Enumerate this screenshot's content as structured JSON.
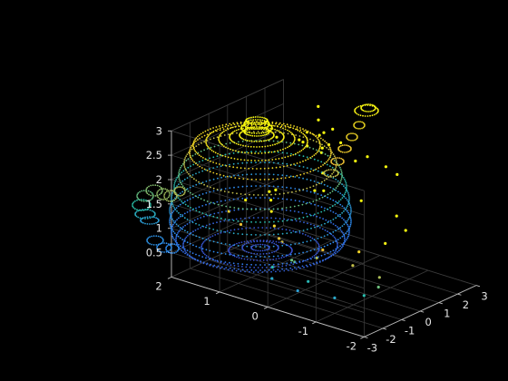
{
  "chart_data": {
    "type": "scatter",
    "title": "",
    "xlabel": "",
    "ylabel": "",
    "zlabel": "",
    "xlim": [
      -3,
      3
    ],
    "ylim": [
      -2,
      2
    ],
    "zlim": [
      0,
      3
    ],
    "x_ticks": [
      "-3",
      "-2",
      "-1",
      "0",
      "1",
      "2",
      "3"
    ],
    "y_ticks": [
      "-2",
      "-1",
      "0",
      "1",
      "2"
    ],
    "z_ticks": [
      "0.5",
      "1",
      "1.5",
      "2",
      "2.5",
      "3"
    ],
    "grid": true,
    "colormap": "parula",
    "colors": [
      "#3e26a8",
      "#2e87f7",
      "#29c3aa",
      "#ecbf33",
      "#f9fb0e"
    ],
    "series": [
      {
        "x": [
          -0.45,
          0.9,
          1.7,
          2.0,
          1.7,
          0.9,
          -0.45,
          -1.6,
          -2.25,
          -2.4,
          -2.25,
          -1.6,
          0.6,
          1.3,
          1.55,
          1.3,
          0.6,
          -0.3,
          -1.1,
          -1.4,
          -1.1,
          -0.3,
          -2.9,
          -2.85,
          -2.75,
          -2.65,
          -2.55,
          -2.45,
          -2.4,
          2.05,
          2.25,
          2.45,
          2.6,
          2.8,
          3.05,
          0.7,
          1.0,
          1.3,
          1.3,
          1.0,
          0.7,
          0.4,
          0.4,
          -0.6,
          0.0,
          0.6,
          0.0,
          -0.6,
          0.0
        ],
        "y": [
          -1.45,
          -1.35,
          -0.85,
          0.0,
          0.85,
          1.35,
          1.45,
          1.35,
          0.85,
          0.0,
          -0.85,
          -1.35,
          -0.9,
          -0.65,
          0.0,
          0.65,
          0.9,
          0.95,
          0.65,
          0.0,
          -0.65,
          -0.95,
          -0.8,
          -0.5,
          -0.2,
          0.0,
          0.1,
          0.15,
          0.2,
          0.8,
          0.9,
          1.0,
          1.1,
          1.2,
          1.3,
          -1.25,
          -0.9,
          -0.4,
          0.4,
          0.9,
          1.25,
          0.5,
          -0.5,
          -0.2,
          -0.35,
          0.05,
          0.35,
          0.2,
          0.0
        ],
        "z": [
          1.3,
          1.3,
          1.3,
          1.3,
          1.3,
          1.3,
          1.3,
          1.3,
          1.3,
          1.3,
          1.3,
          1.3,
          0.05,
          0.05,
          0.05,
          0.05,
          0.05,
          0.05,
          0.05,
          0.05,
          0.05,
          0.05,
          0.75,
          1.05,
          1.35,
          1.6,
          1.85,
          2.05,
          2.2,
          1.25,
          1.55,
          1.9,
          2.2,
          2.45,
          2.65,
          2.45,
          2.45,
          2.45,
          2.45,
          2.45,
          2.45,
          2.55,
          2.55,
          2.9,
          2.95,
          3.0,
          2.95,
          2.9,
          3.05
        ]
      }
    ]
  }
}
